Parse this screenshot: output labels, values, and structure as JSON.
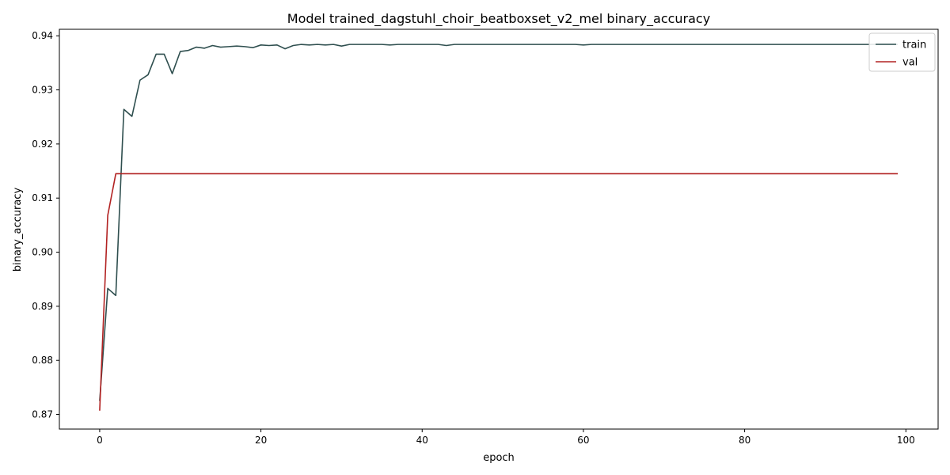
{
  "chart_data": {
    "type": "line",
    "title": "Model trained_dagstuhl_choir_beatboxset_v2_mel binary_accuracy",
    "xlabel": "epoch",
    "ylabel": "binary_accuracy",
    "xlim": [
      -5,
      104
    ],
    "ylim": [
      0.8673,
      0.9412
    ],
    "xticks": [
      0,
      20,
      40,
      60,
      80,
      100
    ],
    "yticks": [
      0.87,
      0.88,
      0.89,
      0.9,
      0.91,
      0.92,
      0.93,
      0.94
    ],
    "ytick_labels": [
      "0.87",
      "0.88",
      "0.89",
      "0.90",
      "0.91",
      "0.92",
      "0.93",
      "0.94"
    ],
    "grid": false,
    "legend_position": "top-right",
    "series": [
      {
        "name": "train",
        "color": "#2f4f4f",
        "values": [
          0.8725,
          0.8933,
          0.892,
          0.9264,
          0.9251,
          0.9318,
          0.9328,
          0.9366,
          0.9366,
          0.933,
          0.9371,
          0.9373,
          0.9379,
          0.9377,
          0.9382,
          0.9379,
          0.938,
          0.9381,
          0.938,
          0.9378,
          0.9383,
          0.9382,
          0.9383,
          0.9376,
          0.9382,
          0.9384,
          0.9383,
          0.9384,
          0.9383,
          0.9384,
          0.9381,
          0.9384,
          0.9384,
          0.9384,
          0.9384,
          0.9384,
          0.9383,
          0.9384,
          0.9384,
          0.9384,
          0.9384,
          0.9384,
          0.9384,
          0.9382,
          0.9384,
          0.9384,
          0.9384,
          0.9384,
          0.9384,
          0.9384,
          0.9384,
          0.9384,
          0.9384,
          0.9384,
          0.9384,
          0.9384,
          0.9384,
          0.9384,
          0.9384,
          0.9384,
          0.9383,
          0.9384,
          0.9384,
          0.9384,
          0.9384,
          0.9384,
          0.9384,
          0.9384,
          0.9384,
          0.9384,
          0.9384,
          0.9384,
          0.9384,
          0.9384,
          0.9384,
          0.9384,
          0.9384,
          0.9384,
          0.9384,
          0.9384,
          0.9384,
          0.9384,
          0.9384,
          0.9384,
          0.9384,
          0.9384,
          0.9384,
          0.9384,
          0.9384,
          0.9384,
          0.9384,
          0.9384,
          0.9384,
          0.9384,
          0.9384,
          0.9384,
          0.9384,
          0.9384,
          0.9384,
          0.9384
        ]
      },
      {
        "name": "val",
        "color": "#b22222",
        "values": [
          0.8707,
          0.9068,
          0.9145,
          0.9145,
          0.9145,
          0.9145,
          0.9145,
          0.9145,
          0.9145,
          0.9145,
          0.9145,
          0.9145,
          0.9145,
          0.9145,
          0.9145,
          0.9145,
          0.9145,
          0.9145,
          0.9145,
          0.9145,
          0.9145,
          0.9145,
          0.9145,
          0.9145,
          0.9145,
          0.9145,
          0.9145,
          0.9145,
          0.9145,
          0.9145,
          0.9145,
          0.9145,
          0.9145,
          0.9145,
          0.9145,
          0.9145,
          0.9145,
          0.9145,
          0.9145,
          0.9145,
          0.9145,
          0.9145,
          0.9145,
          0.9145,
          0.9145,
          0.9145,
          0.9145,
          0.9145,
          0.9145,
          0.9145,
          0.9145,
          0.9145,
          0.9145,
          0.9145,
          0.9145,
          0.9145,
          0.9145,
          0.9145,
          0.9145,
          0.9145,
          0.9145,
          0.9145,
          0.9145,
          0.9145,
          0.9145,
          0.9145,
          0.9145,
          0.9145,
          0.9145,
          0.9145,
          0.9145,
          0.9145,
          0.9145,
          0.9145,
          0.9145,
          0.9145,
          0.9145,
          0.9145,
          0.9145,
          0.9145,
          0.9145,
          0.9145,
          0.9145,
          0.9145,
          0.9145,
          0.9145,
          0.9145,
          0.9145,
          0.9145,
          0.9145,
          0.9145,
          0.9145,
          0.9145,
          0.9145,
          0.9145,
          0.9145,
          0.9145,
          0.9145,
          0.9145,
          0.9145
        ]
      }
    ]
  }
}
